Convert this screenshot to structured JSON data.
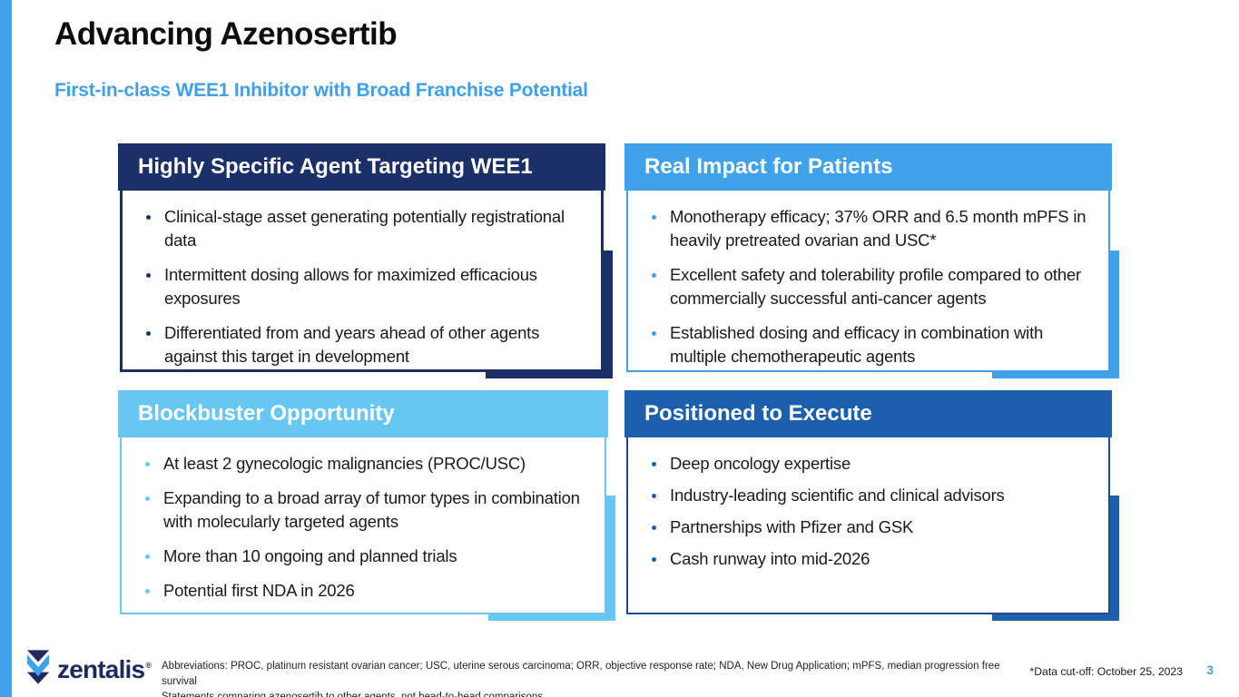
{
  "header": {
    "title": "Advancing Azenosertib",
    "subtitle": "First-in-class WEE1 Inhibitor with Broad Franchise Potential"
  },
  "boxes": [
    {
      "title": "Highly Specific Agent Targeting WEE1",
      "accent": "#1B3068",
      "bullets": [
        "Clinical-stage asset generating potentially registrational data",
        "Intermittent dosing allows for maximized efficacious exposures",
        "Differentiated from and years ahead of other agents against this target in development"
      ]
    },
    {
      "title": "Real Impact for Patients",
      "accent": "#41A2EC",
      "bullets": [
        "Monotherapy efficacy; 37% ORR and 6.5 month mPFS in heavily pretreated ovarian and USC*",
        "Excellent safety and tolerability profile compared to other commercially successful anti-cancer agents",
        "Established dosing and efficacy in combination with multiple chemotherapeutic agents"
      ]
    },
    {
      "title": "Blockbuster Opportunity",
      "accent": "#67C7F0",
      "bullets": [
        "At least 2 gynecologic malignancies (PROC/USC)",
        "Expanding to a broad array of tumor types in combination with molecularly targeted agents",
        "More than 10 ongoing and planned trials",
        "Potential first NDA in 2026"
      ]
    },
    {
      "title": "Positioned to Execute",
      "accent": "#1C5FAD",
      "border": "#1E4B94",
      "bullets": [
        "Deep oncology expertise",
        "Industry-leading scientific and clinical advisors",
        "Partnerships with Pfizer and GSK",
        "Cash runway into mid-2026"
      ]
    }
  ],
  "footer": {
    "logo_text": "zentalis",
    "registered_mark": "®",
    "fineprint_line1": "Abbreviations: PROC, platinum resistant ovarian cancer; USC, uterine serous carcinoma; ORR, objective response rate; NDA, New Drug Application; mPFS, median progression free survival",
    "fineprint_line2": "Statements comparing azenosertib to other agents, not head-to-head comparisons",
    "data_cutoff": "*Data cut-off:  October 25, 2023",
    "page_number": "3"
  },
  "colors": {
    "navy": "#1B3068",
    "bright_blue": "#41A2EC",
    "sky_blue": "#67C7F0",
    "medium_blue": "#1C5FAD",
    "subtitle_blue": "#3F9FE8",
    "left_stripe": "#41A2EC",
    "logo_navy": "#1E2A5E"
  }
}
